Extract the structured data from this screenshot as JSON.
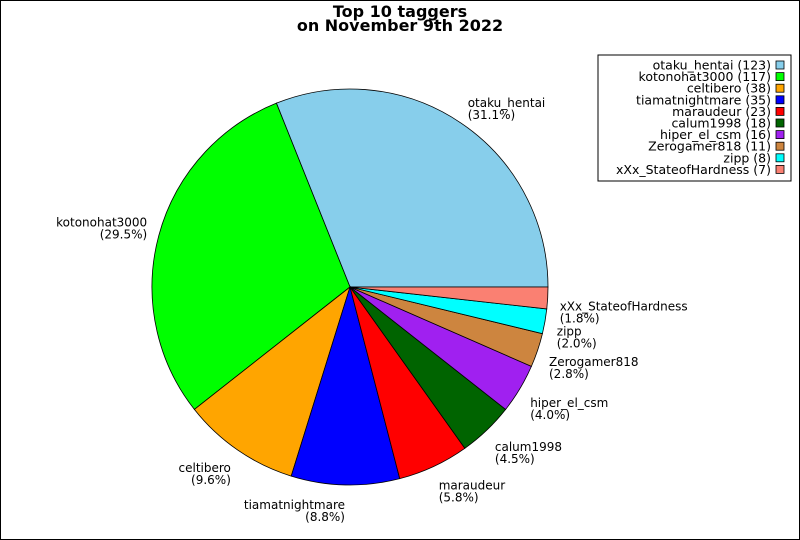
{
  "chart_data": {
    "type": "pie",
    "title_lines": [
      "Top 10 taggers",
      "on November 9th 2022"
    ],
    "legend_position": "top-right",
    "slices": [
      {
        "name": "otaku_hentai",
        "value": 123,
        "percent_label": "(31.1%)",
        "legend_label": "otaku_hentai (123)",
        "color": "#87CEEB"
      },
      {
        "name": "kotonohat3000",
        "value": 117,
        "percent_label": "(29.5%)",
        "legend_label": "kotonohat3000 (117)",
        "color": "#00FF00"
      },
      {
        "name": "celtibero",
        "value": 38,
        "percent_label": "(9.6%)",
        "legend_label": "celtibero (38)",
        "color": "#FFA500"
      },
      {
        "name": "tiamatnightmare",
        "value": 35,
        "percent_label": "(8.8%)",
        "legend_label": "tiamatnightmare (35)",
        "color": "#0000FF"
      },
      {
        "name": "maraudeur",
        "value": 23,
        "percent_label": "(5.8%)",
        "legend_label": "maraudeur (23)",
        "color": "#FF0000"
      },
      {
        "name": "calum1998",
        "value": 18,
        "percent_label": "(4.5%)",
        "legend_label": "calum1998 (18)",
        "color": "#006400"
      },
      {
        "name": "hiper_el_csm",
        "value": 16,
        "percent_label": "(4.0%)",
        "legend_label": "hiper_el_csm (16)",
        "color": "#A020F0"
      },
      {
        "name": "Zerogamer818",
        "value": 11,
        "percent_label": "(2.8%)",
        "legend_label": "Zerogamer818 (11)",
        "color": "#CD853F"
      },
      {
        "name": "zipp",
        "value": 8,
        "percent_label": "(2.0%)",
        "legend_label": "zipp (8)",
        "color": "#00FFFF"
      },
      {
        "name": "xXx_StateofHardness",
        "value": 7,
        "percent_label": "(1.8%)",
        "legend_label": "xXx_StateofHardness (7)",
        "color": "#FA8072"
      }
    ]
  }
}
